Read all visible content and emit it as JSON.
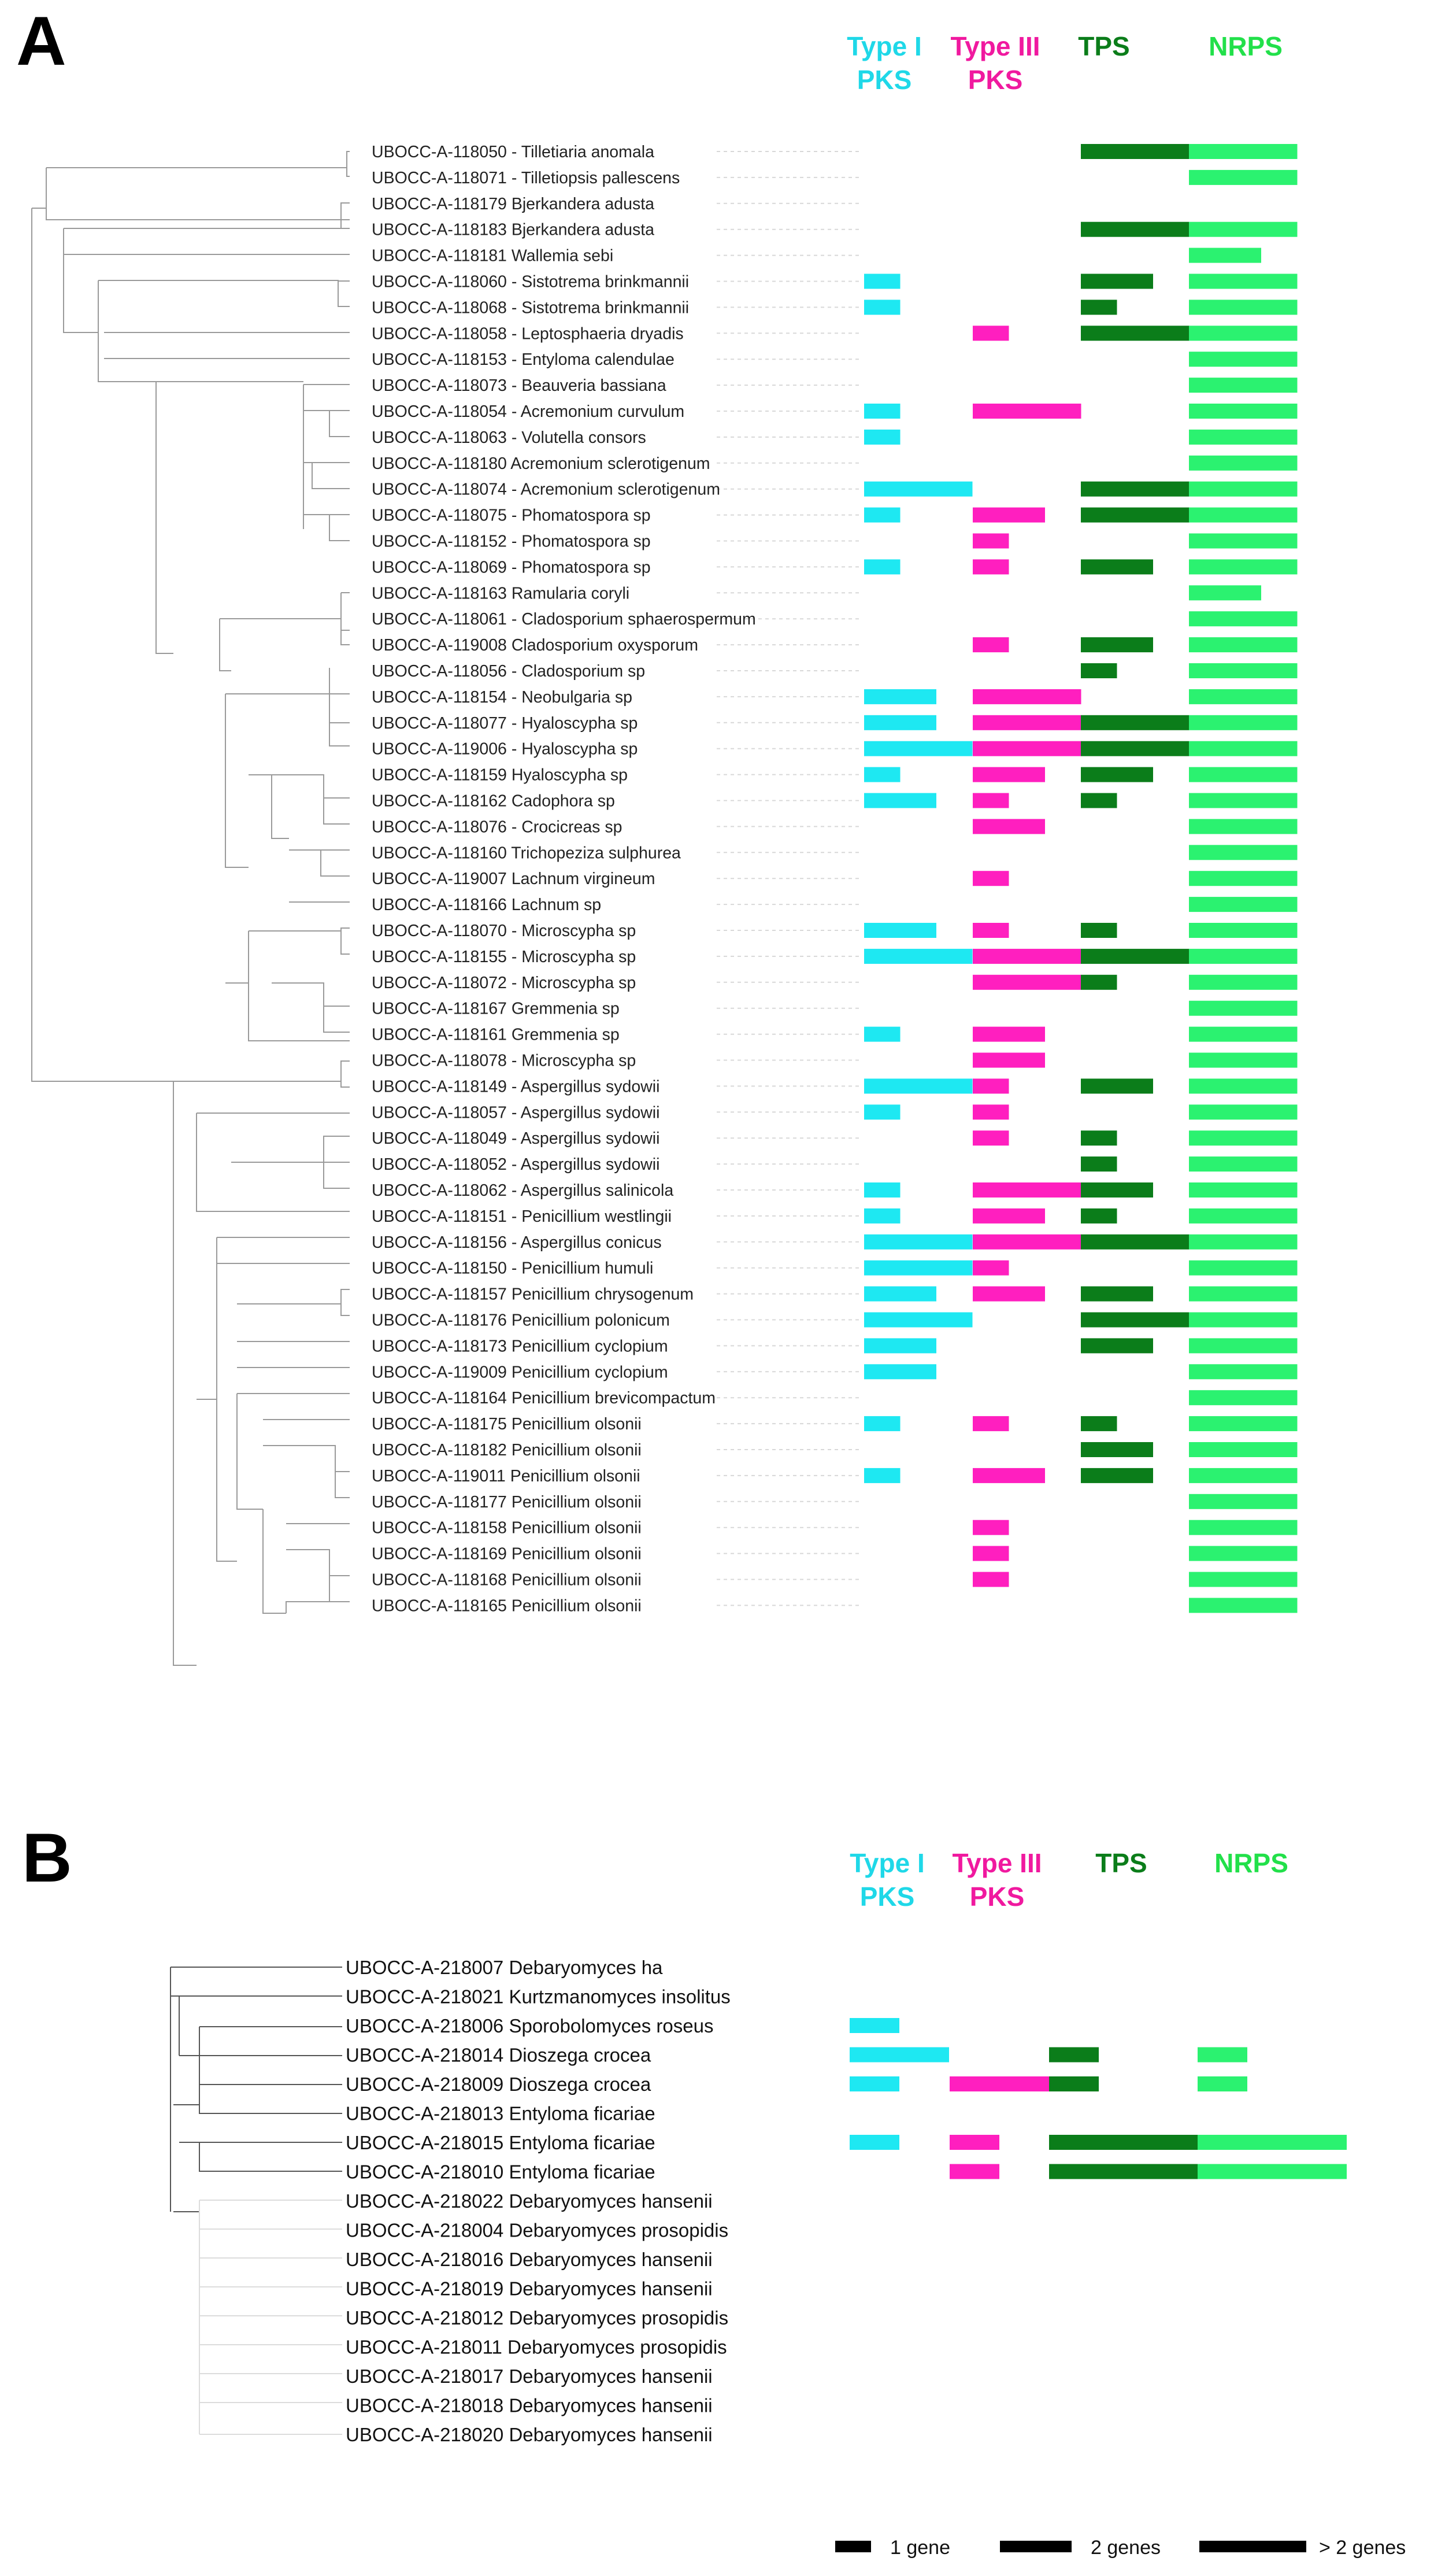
{
  "colors": {
    "type1_pks": "#1ee8f2",
    "type3_pks": "#ff1fbf",
    "tps": "#0b7d1a",
    "nrps": "#2bf270",
    "header_type1": "#1fd8e8",
    "header_type3": "#f0199f",
    "header_tps": "#0b7d1a",
    "header_nrps": "#22e04a"
  },
  "panel_a": {
    "letter": "A",
    "headers": {
      "type1_line1": "Type I",
      "type1_line2": "PKS",
      "type3_line1": "Type III",
      "type3_line2": "PKS",
      "tps": "TPS",
      "nrps": "NRPS"
    },
    "rows": [
      {
        "label": "UBOCC-A-118050 - Tilletiaria anomala",
        "t1": 0,
        "t3": 0,
        "tps": 3,
        "nrps": 3
      },
      {
        "label": "UBOCC-A-118071 - Tilletiopsis pallescens",
        "t1": 0,
        "t3": 0,
        "tps": 0,
        "nrps": 3
      },
      {
        "label": "UBOCC-A-118179 Bjerkandera adusta",
        "t1": 0,
        "t3": 0,
        "tps": 0,
        "nrps": 0
      },
      {
        "label": "UBOCC-A-118183 Bjerkandera adusta",
        "t1": 0,
        "t3": 0,
        "tps": 3,
        "nrps": 3
      },
      {
        "label": "UBOCC-A-118181 Wallemia sebi",
        "t1": 0,
        "t3": 0,
        "tps": 0,
        "nrps": 2
      },
      {
        "label": "UBOCC-A-118060 - Sistotrema brinkmannii",
        "t1": 1,
        "t3": 0,
        "tps": 2,
        "nrps": 3
      },
      {
        "label": "UBOCC-A-118068 - Sistotrema brinkmannii",
        "t1": 1,
        "t3": 0,
        "tps": 1,
        "nrps": 3
      },
      {
        "label": "UBOCC-A-118058 - Leptosphaeria dryadis",
        "t1": 0,
        "t3": 1,
        "tps": 3,
        "nrps": 3
      },
      {
        "label": "UBOCC-A-118153 - Entyloma calendulae",
        "t1": 0,
        "t3": 0,
        "tps": 0,
        "nrps": 3
      },
      {
        "label": "UBOCC-A-118073 - Beauveria bassiana",
        "t1": 0,
        "t3": 0,
        "tps": 0,
        "nrps": 3
      },
      {
        "label": "UBOCC-A-118054 - Acremonium curvulum",
        "t1": 1,
        "t3": 3,
        "tps": 0,
        "nrps": 3
      },
      {
        "label": "UBOCC-A-118063 - Volutella consors",
        "t1": 1,
        "t3": 0,
        "tps": 0,
        "nrps": 3
      },
      {
        "label": "UBOCC-A-118180 Acremonium sclerotigenum",
        "t1": 0,
        "t3": 0,
        "tps": 0,
        "nrps": 3
      },
      {
        "label": "UBOCC-A-118074 - Acremonium sclerotigenum",
        "t1": 3,
        "t3": 0,
        "tps": 3,
        "nrps": 3
      },
      {
        "label": "UBOCC-A-118075 - Phomatospora sp",
        "t1": 1,
        "t3": 2,
        "tps": 3,
        "nrps": 3
      },
      {
        "label": "UBOCC-A-118152 - Phomatospora sp",
        "t1": 0,
        "t3": 1,
        "tps": 0,
        "nrps": 3
      },
      {
        "label": "UBOCC-A-118069 - Phomatospora sp",
        "t1": 1,
        "t3": 1,
        "tps": 2,
        "nrps": 3
      },
      {
        "label": "UBOCC-A-118163 Ramularia coryli",
        "t1": 0,
        "t3": 0,
        "tps": 0,
        "nrps": 2
      },
      {
        "label": "UBOCC-A-118061 - Cladosporium sphaerospermum",
        "t1": 0,
        "t3": 0,
        "tps": 0,
        "nrps": 3
      },
      {
        "label": "UBOCC-A-119008 Cladosporium oxysporum",
        "t1": 0,
        "t3": 1,
        "tps": 2,
        "nrps": 3
      },
      {
        "label": "UBOCC-A-118056 - Cladosporium sp",
        "t1": 0,
        "t3": 0,
        "tps": 1,
        "nrps": 3
      },
      {
        "label": "UBOCC-A-118154 - Neobulgaria sp",
        "t1": 2,
        "t3": 3,
        "tps": 0,
        "nrps": 3
      },
      {
        "label": "UBOCC-A-118077 - Hyaloscypha sp",
        "t1": 2,
        "t3": 3,
        "tps": 3,
        "nrps": 3
      },
      {
        "label": "UBOCC-A-119006 - Hyaloscypha sp",
        "t1": 3,
        "t3": 3,
        "tps": 3,
        "nrps": 3
      },
      {
        "label": "UBOCC-A-118159 Hyaloscypha sp",
        "t1": 1,
        "t3": 2,
        "tps": 2,
        "nrps": 3
      },
      {
        "label": "UBOCC-A-118162 Cadophora sp",
        "t1": 2,
        "t3": 1,
        "tps": 1,
        "nrps": 3
      },
      {
        "label": "UBOCC-A-118076 - Crocicreas sp",
        "t1": 0,
        "t3": 2,
        "tps": 0,
        "nrps": 3
      },
      {
        "label": "UBOCC-A-118160 Trichopeziza sulphurea",
        "t1": 0,
        "t3": 0,
        "tps": 0,
        "nrps": 3
      },
      {
        "label": "UBOCC-A-119007 Lachnum virgineum",
        "t1": 0,
        "t3": 1,
        "tps": 0,
        "nrps": 3
      },
      {
        "label": "UBOCC-A-118166 Lachnum sp",
        "t1": 0,
        "t3": 0,
        "tps": 0,
        "nrps": 3
      },
      {
        "label": "UBOCC-A-118070 - Microscypha sp",
        "t1": 2,
        "t3": 1,
        "tps": 1,
        "nrps": 3
      },
      {
        "label": "UBOCC-A-118155 - Microscypha sp",
        "t1": 3,
        "t3": 3,
        "tps": 3,
        "nrps": 3
      },
      {
        "label": "UBOCC-A-118072 - Microscypha sp",
        "t1": 0,
        "t3": 3,
        "tps": 1,
        "nrps": 3
      },
      {
        "label": "UBOCC-A-118167 Gremmenia sp",
        "t1": 0,
        "t3": 0,
        "tps": 0,
        "nrps": 3
      },
      {
        "label": "UBOCC-A-118161 Gremmenia sp",
        "t1": 1,
        "t3": 2,
        "tps": 0,
        "nrps": 3
      },
      {
        "label": "UBOCC-A-118078 - Microscypha sp",
        "t1": 0,
        "t3": 2,
        "tps": 0,
        "nrps": 3
      },
      {
        "label": "UBOCC-A-118149 - Aspergillus sydowii",
        "t1": 3,
        "t3": 1,
        "tps": 2,
        "nrps": 3
      },
      {
        "label": "UBOCC-A-118057 - Aspergillus sydowii",
        "t1": 1,
        "t3": 1,
        "tps": 0,
        "nrps": 3
      },
      {
        "label": "UBOCC-A-118049 - Aspergillus sydowii",
        "t1": 0,
        "t3": 1,
        "tps": 1,
        "nrps": 3
      },
      {
        "label": "UBOCC-A-118052 - Aspergillus sydowii",
        "t1": 0,
        "t3": 0,
        "tps": 1,
        "nrps": 3
      },
      {
        "label": "UBOCC-A-118062 - Aspergillus salinicola",
        "t1": 1,
        "t3": 3,
        "tps": 2,
        "nrps": 3
      },
      {
        "label": "UBOCC-A-118151 - Penicillium westlingii",
        "t1": 1,
        "t3": 2,
        "tps": 1,
        "nrps": 3
      },
      {
        "label": "UBOCC-A-118156 - Aspergillus conicus",
        "t1": 3,
        "t3": 3,
        "tps": 3,
        "nrps": 3
      },
      {
        "label": "UBOCC-A-118150 - Penicillium humuli",
        "t1": 3,
        "t3": 1,
        "tps": 0,
        "nrps": 3
      },
      {
        "label": "UBOCC-A-118157 Penicillium chrysogenum",
        "t1": 2,
        "t3": 2,
        "tps": 2,
        "nrps": 3
      },
      {
        "label": "UBOCC-A-118176 Penicillium polonicum",
        "t1": 3,
        "t3": 0,
        "tps": 3,
        "nrps": 3
      },
      {
        "label": "UBOCC-A-118173 Penicillium cyclopium",
        "t1": 2,
        "t3": 0,
        "tps": 2,
        "nrps": 3
      },
      {
        "label": "UBOCC-A-119009 Penicillium cyclopium",
        "t1": 2,
        "t3": 0,
        "tps": 0,
        "nrps": 3
      },
      {
        "label": "UBOCC-A-118164 Penicillium brevicompactum",
        "t1": 0,
        "t3": 0,
        "tps": 0,
        "nrps": 3
      },
      {
        "label": "UBOCC-A-118175 Penicillium olsonii",
        "t1": 1,
        "t3": 1,
        "tps": 1,
        "nrps": 3
      },
      {
        "label": "UBOCC-A-118182 Penicillium olsonii",
        "t1": 0,
        "t3": 0,
        "tps": 2,
        "nrps": 3
      },
      {
        "label": "UBOCC-A-119011 Penicillium olsonii",
        "t1": 1,
        "t3": 2,
        "tps": 2,
        "nrps": 3
      },
      {
        "label": "UBOCC-A-118177 Penicillium olsonii",
        "t1": 0,
        "t3": 0,
        "tps": 0,
        "nrps": 3
      },
      {
        "label": "UBOCC-A-118158 Penicillium olsonii",
        "t1": 0,
        "t3": 1,
        "tps": 0,
        "nrps": 3
      },
      {
        "label": "UBOCC-A-118169 Penicillium olsonii",
        "t1": 0,
        "t3": 1,
        "tps": 0,
        "nrps": 3
      },
      {
        "label": "UBOCC-A-118168 Penicillium olsonii",
        "t1": 0,
        "t3": 1,
        "tps": 0,
        "nrps": 3
      },
      {
        "label": "UBOCC-A-118165 Penicillium olsonii",
        "t1": 0,
        "t3": 0,
        "tps": 0,
        "nrps": 3
      }
    ]
  },
  "panel_b": {
    "letter": "B",
    "headers": {
      "type1_line1": "Type I",
      "type1_line2": "PKS",
      "type3_line1": "Type III",
      "type3_line2": "PKS",
      "tps": "TPS",
      "nrps": "NRPS"
    },
    "rows": [
      {
        "label": "UBOCC-A-218007 Debaryomyces hа",
        "t1": 0,
        "t3": 0,
        "tps": 0,
        "nrps": 0
      },
      {
        "label": "UBOCC-A-218021 Kurtzmanomyces insolitus",
        "t1": 0,
        "t3": 0,
        "tps": 0,
        "nrps": 0
      },
      {
        "label": "UBOCC-A-218006 Sporobolomyces roseus",
        "t1": 1,
        "t3": 0,
        "tps": 0,
        "nrps": 0
      },
      {
        "label": "UBOCC-A-218014 Dioszega crocea",
        "t1": 2,
        "t3": 0,
        "tps": 1,
        "nrps": 1
      },
      {
        "label": "UBOCC-A-218009 Dioszega crocea",
        "t1": 1,
        "t3": 2,
        "tps": 1,
        "nrps": 1
      },
      {
        "label": "UBOCC-A-218013 Entyloma ficariae",
        "t1": 0,
        "t3": 0,
        "tps": 0,
        "nrps": 0
      },
      {
        "label": "UBOCC-A-218015 Entyloma ficariae",
        "t1": 1,
        "t3": 1,
        "tps": 3,
        "nrps": 3
      },
      {
        "label": "UBOCC-A-218010 Entyloma ficariae",
        "t1": 0,
        "t3": 1,
        "tps": 3,
        "nrps": 3
      },
      {
        "label": "UBOCC-A-218022 Debaryomyces hansenii",
        "t1": 0,
        "t3": 0,
        "tps": 0,
        "nrps": 0
      },
      {
        "label": "UBOCC-A-218004 Debaryomyces prosopidis",
        "t1": 0,
        "t3": 0,
        "tps": 0,
        "nrps": 0
      },
      {
        "label": "UBOCC-A-218016 Debaryomyces hansenii",
        "t1": 0,
        "t3": 0,
        "tps": 0,
        "nrps": 0
      },
      {
        "label": "UBOCC-A-218019 Debaryomyces hansenii",
        "t1": 0,
        "t3": 0,
        "tps": 0,
        "nrps": 0
      },
      {
        "label": "UBOCC-A-218012 Debaryomyces prosopidis",
        "t1": 0,
        "t3": 0,
        "tps": 0,
        "nrps": 0
      },
      {
        "label": "UBOCC-A-218011 Debaryomyces prosopidis",
        "t1": 0,
        "t3": 0,
        "tps": 0,
        "nrps": 0
      },
      {
        "label": "UBOCC-A-218017 Debaryomyces hansenii",
        "t1": 0,
        "t3": 0,
        "tps": 0,
        "nrps": 0
      },
      {
        "label": "UBOCC-A-218018 Debaryomyces hansenii",
        "t1": 0,
        "t3": 0,
        "tps": 0,
        "nrps": 0
      },
      {
        "label": "UBOCC-A-218020 Debaryomyces hansenii",
        "t1": 0,
        "t3": 0,
        "tps": 0,
        "nrps": 0
      }
    ]
  },
  "legend": {
    "one_gene": "1 gene",
    "two_genes": "2 genes",
    "more_genes": "> 2 genes"
  }
}
